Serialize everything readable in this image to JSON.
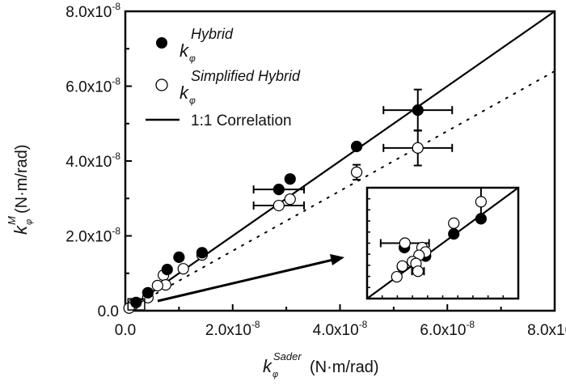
{
  "chart_data": {
    "type": "scatter",
    "xlabel": {
      "symbol": "k",
      "sub": "φ",
      "sup": "Sader",
      "unit": "(N·m/rad)"
    },
    "ylabel": {
      "symbol": "k",
      "sub": "φ",
      "sup": "M",
      "unit": "(N·m/rad)"
    },
    "xlim": [
      0,
      8e-08
    ],
    "ylim": [
      0,
      8e-08
    ],
    "xticks": [
      "0.0",
      "2.0x10",
      "4.0x10",
      "6.0x10",
      "8.0x10"
    ],
    "yticks": [
      "0.0",
      "2.0x10",
      "4.0x10",
      "6.0x10",
      "8.0x10"
    ],
    "tick_exponent": "-8",
    "tick_values": [
      0,
      2e-08,
      4e-08,
      6e-08,
      8e-08
    ],
    "legend_position": "top-left",
    "series": [
      {
        "name": "Hybrid",
        "legend_symbol": "k",
        "legend_sub": "φ",
        "marker": "filled-circle",
        "color": "#000000",
        "points": [
          {
            "x": 5.45e-08,
            "y": 5.36e-08,
            "xerr": 6.4e-09,
            "yerr": 5.5e-09
          },
          {
            "x": 4.31e-08,
            "y": 4.39e-08
          },
          {
            "x": 3.07e-08,
            "y": 3.52e-08
          },
          {
            "x": 2.86e-08,
            "y": 3.24e-08,
            "xerr": 4.7e-09
          },
          {
            "x": 1.43e-08,
            "y": 1.55e-08
          },
          {
            "x": 1e-08,
            "y": 1.43e-08
          },
          {
            "x": 7.8e-09,
            "y": 1.1e-08
          },
          {
            "x": 4.2e-09,
            "y": 4.8e-09
          },
          {
            "x": 2e-09,
            "y": 2.2e-09
          }
        ]
      },
      {
        "name": "Simplified Hybrid",
        "legend_symbol": "k",
        "legend_sub": "φ",
        "marker": "open-circle",
        "color": "#000000",
        "points": [
          {
            "x": 5.45e-08,
            "y": 4.35e-08,
            "xerr": 6.4e-09,
            "yerr": 4.7e-09
          },
          {
            "x": 4.31e-08,
            "y": 3.7e-08,
            "yerr": 2e-09
          },
          {
            "x": 3.07e-08,
            "y": 2.98e-08
          },
          {
            "x": 2.86e-08,
            "y": 2.81e-08,
            "xerr": 4.7e-09
          },
          {
            "x": 1.43e-08,
            "y": 1.49e-08
          },
          {
            "x": 1.08e-08,
            "y": 1.12e-08
          },
          {
            "x": 7.1e-09,
            "y": 9.5e-09
          },
          {
            "x": 7.5e-09,
            "y": 6.9e-09
          },
          {
            "x": 6e-09,
            "y": 6.7e-09
          },
          {
            "x": 4.2e-09,
            "y": 3.5e-09
          },
          {
            "x": 1.5e-09,
            "y": 1.7e-09
          },
          {
            "x": 7e-10,
            "y": 7e-10
          }
        ]
      }
    ],
    "lines": [
      {
        "name": "1:1 Correlation",
        "style": "solid",
        "slope": 1
      },
      {
        "style": "dotted",
        "slope": 0.8
      }
    ],
    "inset": {
      "range": [
        0,
        3e-09
      ],
      "filled": [
        {
          "x": 2.26e-09,
          "y": 2.16e-09
        },
        {
          "x": 1.72e-09,
          "y": 1.75e-09
        },
        {
          "x": 1.16e-09,
          "y": 1.15e-09
        },
        {
          "x": 7.4e-10,
          "y": 1.38e-09
        },
        {
          "x": 7e-10,
          "y": 8.6e-10
        }
      ],
      "open": [
        {
          "x": 2.26e-09,
          "y": 2.62e-09,
          "yerr": 3.8e-10
        },
        {
          "x": 1.72e-09,
          "y": 2.04e-09
        },
        {
          "x": 7.5e-10,
          "y": 1.5e-09,
          "xerr": 4.8e-10
        },
        {
          "x": 1.09e-09,
          "y": 1.38e-09
        },
        {
          "x": 1.16e-09,
          "y": 1.26e-09
        },
        {
          "x": 1.03e-09,
          "y": 1.17e-09
        },
        {
          "x": 9e-10,
          "y": 1e-09
        },
        {
          "x": 9.7e-10,
          "y": 9.5e-10
        },
        {
          "x": 7e-10,
          "y": 8.8e-10
        },
        {
          "x": 5.9e-10,
          "y": 5.9e-10
        },
        {
          "x": 1.01e-09,
          "y": 7.4e-10,
          "xerr": 1.2e-10
        }
      ]
    }
  }
}
